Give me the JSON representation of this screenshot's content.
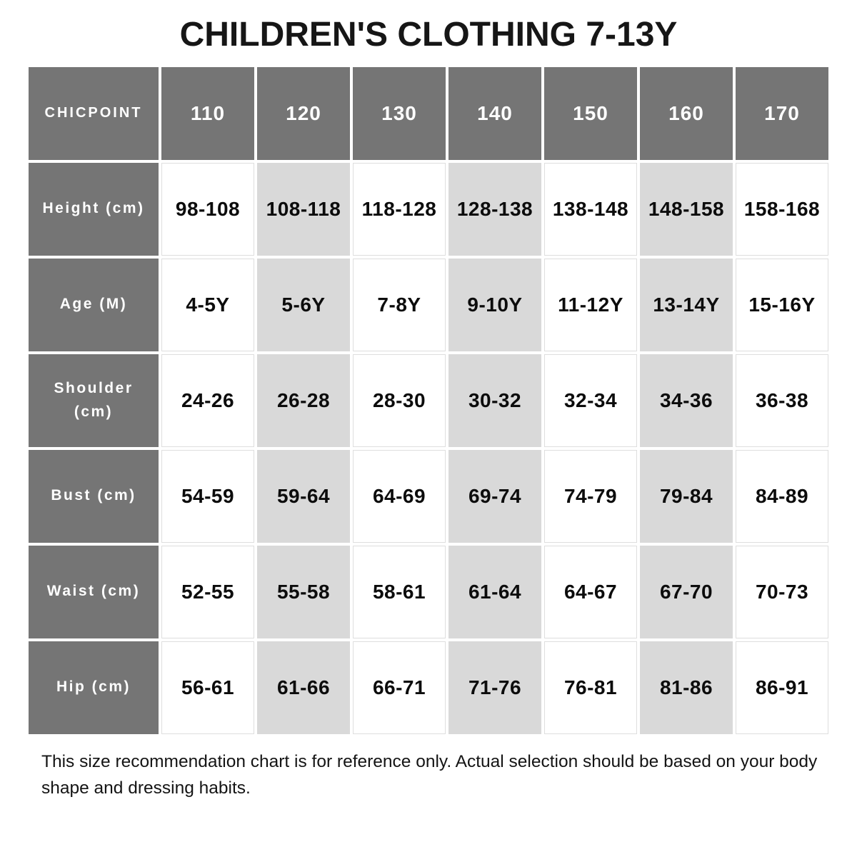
{
  "title": "CHILDREN'S CLOTHING 7-13Y",
  "chart_data": {
    "type": "table",
    "title": "CHILDREN'S CLOTHING 7-13Y",
    "brand": "CHICPOINT",
    "columns": [
      "110",
      "120",
      "130",
      "140",
      "150",
      "160",
      "170"
    ],
    "rows": [
      {
        "label": "Height (cm)",
        "values": [
          "98-108",
          "108-118",
          "118-128",
          "128-138",
          "138-148",
          "148-158",
          "158-168"
        ]
      },
      {
        "label": "Age (M)",
        "values": [
          "4-5Y",
          "5-6Y",
          "7-8Y",
          "9-10Y",
          "11-12Y",
          "13-14Y",
          "15-16Y"
        ]
      },
      {
        "label": "Shoulder (cm)",
        "values": [
          "24-26",
          "26-28",
          "28-30",
          "30-32",
          "32-34",
          "34-36",
          "36-38"
        ]
      },
      {
        "label": "Bust (cm)",
        "values": [
          "54-59",
          "59-64",
          "64-69",
          "69-74",
          "74-79",
          "79-84",
          "84-89"
        ]
      },
      {
        "label": "Waist (cm)",
        "values": [
          "52-55",
          "55-58",
          "58-61",
          "61-64",
          "64-67",
          "67-70",
          "70-73"
        ]
      },
      {
        "label": "Hip (cm)",
        "values": [
          "56-61",
          "61-66",
          "66-71",
          "71-76",
          "76-81",
          "81-86",
          "86-91"
        ]
      }
    ],
    "highlighted_columns": [
      "120",
      "140",
      "160"
    ],
    "layout": "header row and label column dark; data columns alternate white / light gray"
  },
  "footnote": "This size recommendation chart is for reference only. Actual selection should be based on your body shape and dressing habits.",
  "colors": {
    "header_bg": "#757575",
    "alt_column_bg": "#d9d9d9",
    "cell_border": "#dedede",
    "header_text": "#ffffff",
    "data_text": "#0c0c0c",
    "page_bg": "#ffffff"
  }
}
